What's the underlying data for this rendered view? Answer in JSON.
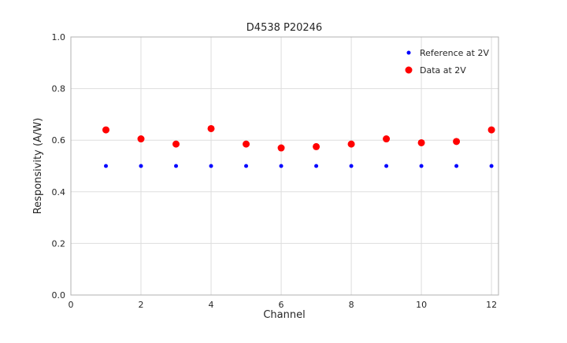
{
  "chart_data": {
    "type": "scatter",
    "title": "D4538 P20246",
    "xlabel": "Channel",
    "ylabel": "Responsivity (A/W)",
    "xlim": [
      0,
      12.2
    ],
    "ylim": [
      0.0,
      1.0
    ],
    "grid": true,
    "legend_position": "upper right",
    "x": [
      1,
      2,
      3,
      4,
      5,
      6,
      7,
      8,
      9,
      10,
      11,
      12
    ],
    "xticks": [
      0,
      2,
      4,
      6,
      8,
      10,
      12
    ],
    "xticklabels": [
      "0",
      "2",
      "4",
      "6",
      "8",
      "10",
      "12"
    ],
    "yticks": [
      0.0,
      0.2,
      0.4,
      0.6,
      0.8,
      1.0
    ],
    "yticklabels": [
      "0.0",
      "0.2",
      "0.4",
      "0.6",
      "0.8",
      "1.0"
    ],
    "series": [
      {
        "name": "Reference at 2V",
        "color": "#0000ff",
        "marker_size": 2.5,
        "values": [
          0.5,
          0.5,
          0.5,
          0.5,
          0.5,
          0.5,
          0.5,
          0.5,
          0.5,
          0.5,
          0.5,
          0.5
        ]
      },
      {
        "name": "Data at 2V",
        "color": "#ff0000",
        "marker_size": 4.5,
        "values": [
          0.64,
          0.605,
          0.585,
          0.645,
          0.585,
          0.57,
          0.575,
          0.585,
          0.605,
          0.59,
          0.595,
          0.64
        ]
      }
    ]
  }
}
